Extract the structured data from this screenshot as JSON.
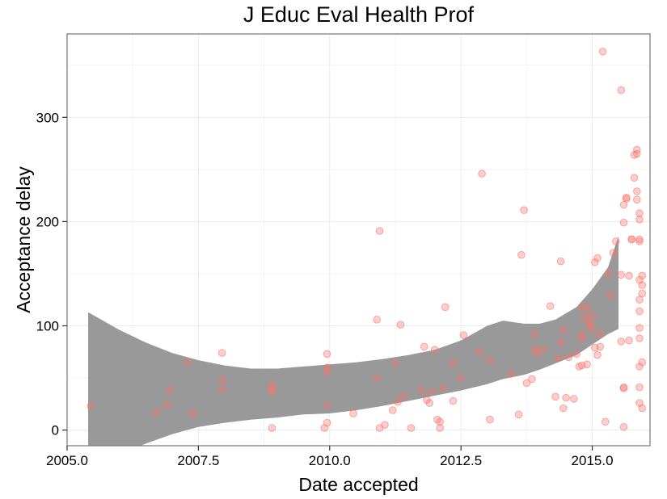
{
  "chart_data": {
    "type": "scatter",
    "title": "J Educ Eval Health Prof",
    "xlabel": "Date accepted",
    "ylabel": "Acceptance delay",
    "xlim": [
      2005.0,
      2016.1
    ],
    "ylim": [
      -15,
      380
    ],
    "x_ticks": [
      2005.0,
      2007.5,
      2010.0,
      2012.5,
      2015.0
    ],
    "x_tick_labels": [
      "2005.0",
      "2007.5",
      "2010.0",
      "2012.5",
      "2015.0"
    ],
    "y_ticks": [
      0,
      100,
      200,
      300
    ],
    "y_tick_labels": [
      "0",
      "100",
      "200",
      "300"
    ],
    "grid": true,
    "colors": {
      "points": "#f8766d",
      "band": "#999999",
      "grid": "#ebebeb",
      "border": "#7f7f7f"
    },
    "smooth_band": {
      "x": [
        2005.4,
        2006.0,
        2006.5,
        2007.0,
        2007.5,
        2008.0,
        2008.5,
        2009.0,
        2009.5,
        2010.0,
        2010.5,
        2011.0,
        2011.5,
        2012.0,
        2012.5,
        2013.0,
        2013.3,
        2013.7,
        2014.0,
        2014.3,
        2014.7,
        2015.0,
        2015.3,
        2015.5
      ],
      "upper": [
        113,
        96,
        84,
        74,
        67,
        62,
        59,
        59,
        61,
        63,
        65,
        68,
        72,
        77,
        86,
        100,
        105,
        102,
        102,
        106,
        118,
        135,
        156,
        186
      ],
      "lower": [
        -30,
        -23,
        -13,
        -4,
        3,
        7,
        10,
        12,
        15,
        16,
        19,
        23,
        28,
        33,
        38,
        44,
        49,
        53,
        58,
        64,
        72,
        82,
        92,
        97
      ]
    },
    "series": [
      {
        "points": [
          [
            2005.45,
            23
          ],
          [
            2006.7,
            17
          ],
          [
            2006.9,
            24
          ],
          [
            2006.95,
            38
          ],
          [
            2007.3,
            65
          ],
          [
            2007.4,
            16
          ],
          [
            2007.95,
            74
          ],
          [
            2007.95,
            48
          ],
          [
            2007.95,
            39
          ],
          [
            2008.9,
            43
          ],
          [
            2008.9,
            40
          ],
          [
            2008.9,
            37
          ],
          [
            2008.9,
            2
          ],
          [
            2009.9,
            2
          ],
          [
            2009.95,
            7
          ],
          [
            2009.95,
            24
          ],
          [
            2009.95,
            60
          ],
          [
            2009.95,
            56
          ],
          [
            2009.95,
            73
          ],
          [
            2010.45,
            16
          ],
          [
            2010.9,
            50
          ],
          [
            2010.9,
            106
          ],
          [
            2010.95,
            2
          ],
          [
            2010.95,
            191
          ],
          [
            2011.05,
            5
          ],
          [
            2011.2,
            19
          ],
          [
            2011.25,
            64
          ],
          [
            2011.3,
            27
          ],
          [
            2011.35,
            101
          ],
          [
            2011.4,
            33
          ],
          [
            2011.55,
            2
          ],
          [
            2011.75,
            38
          ],
          [
            2011.8,
            80
          ],
          [
            2011.85,
            29
          ],
          [
            2011.9,
            26
          ],
          [
            2011.95,
            37
          ],
          [
            2012.0,
            77
          ],
          [
            2012.05,
            10
          ],
          [
            2012.1,
            2
          ],
          [
            2012.1,
            8
          ],
          [
            2012.15,
            40
          ],
          [
            2012.2,
            118
          ],
          [
            2012.35,
            28
          ],
          [
            2012.35,
            64
          ],
          [
            2012.5,
            50
          ],
          [
            2012.55,
            91
          ],
          [
            2012.85,
            75
          ],
          [
            2012.9,
            246
          ],
          [
            2013.05,
            67
          ],
          [
            2013.05,
            10
          ],
          [
            2013.45,
            54
          ],
          [
            2013.6,
            15
          ],
          [
            2013.65,
            168
          ],
          [
            2013.7,
            211
          ],
          [
            2013.75,
            45
          ],
          [
            2013.85,
            49
          ],
          [
            2013.9,
            92
          ],
          [
            2013.9,
            77
          ],
          [
            2013.95,
            74
          ],
          [
            2014.05,
            77
          ],
          [
            2014.2,
            119
          ],
          [
            2014.3,
            32
          ],
          [
            2014.35,
            69
          ],
          [
            2014.4,
            84
          ],
          [
            2014.4,
            162
          ],
          [
            2014.45,
            96
          ],
          [
            2014.45,
            21
          ],
          [
            2014.5,
            31
          ],
          [
            2014.55,
            70
          ],
          [
            2014.65,
            30
          ],
          [
            2014.7,
            73
          ],
          [
            2014.75,
            61
          ],
          [
            2014.8,
            62
          ],
          [
            2014.8,
            88
          ],
          [
            2014.8,
            92
          ],
          [
            2014.8,
            118
          ],
          [
            2014.85,
            108
          ],
          [
            2014.9,
            117
          ],
          [
            2014.9,
            63
          ],
          [
            2014.95,
            101
          ],
          [
            2014.95,
            104
          ],
          [
            2015.0,
            110
          ],
          [
            2015.0,
            97
          ],
          [
            2015.05,
            79
          ],
          [
            2015.05,
            161
          ],
          [
            2015.1,
            165
          ],
          [
            2015.1,
            72
          ],
          [
            2015.15,
            80
          ],
          [
            2015.15,
            92
          ],
          [
            2015.2,
            363
          ],
          [
            2015.25,
            8
          ],
          [
            2015.3,
            150
          ],
          [
            2015.35,
            129
          ],
          [
            2015.4,
            170
          ],
          [
            2015.45,
            181
          ],
          [
            2015.55,
            326
          ],
          [
            2015.55,
            149
          ],
          [
            2015.6,
            199
          ],
          [
            2015.6,
            216
          ],
          [
            2015.65,
            222
          ],
          [
            2015.65,
            223
          ],
          [
            2015.7,
            148
          ],
          [
            2015.7,
            86
          ],
          [
            2015.75,
            183
          ],
          [
            2015.75,
            183
          ],
          [
            2015.8,
            242
          ],
          [
            2015.8,
            264
          ],
          [
            2015.85,
            265
          ],
          [
            2015.85,
            269
          ],
          [
            2015.85,
            229
          ],
          [
            2015.85,
            221
          ],
          [
            2015.9,
            208
          ],
          [
            2015.9,
            202
          ],
          [
            2015.9,
            183
          ],
          [
            2015.9,
            181
          ],
          [
            2015.9,
            144
          ],
          [
            2015.95,
            148
          ],
          [
            2015.95,
            139
          ],
          [
            2015.95,
            131
          ],
          [
            2015.9,
            125
          ],
          [
            2015.9,
            114
          ],
          [
            2015.9,
            98
          ],
          [
            2015.9,
            88
          ],
          [
            2015.9,
            61
          ],
          [
            2015.95,
            65
          ],
          [
            2015.9,
            41
          ],
          [
            2015.9,
            26
          ],
          [
            2015.95,
            21
          ],
          [
            2015.6,
            41
          ],
          [
            2015.6,
            40
          ],
          [
            2015.6,
            3
          ],
          [
            2015.55,
            85
          ]
        ]
      }
    ]
  }
}
